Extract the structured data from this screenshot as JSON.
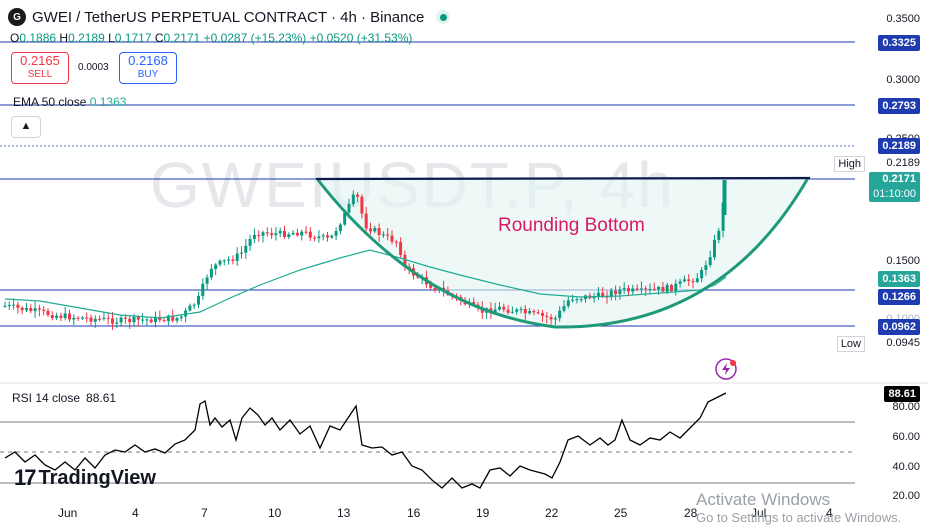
{
  "watermark": "GWEIUSDT.P, 4h",
  "header": {
    "title": "GWEI / TetherUS PERPETUAL CONTRACT · 4h · Binance",
    "ohlc": {
      "o_label": "O",
      "o": "0.1886",
      "h_label": "H",
      "h": "0.2189",
      "l_label": "L",
      "l": "0.1717",
      "c_label": "C",
      "c": "0.2171",
      "change": "+0.0287 (+15.23%)",
      "change2": "+0.0520 (+31.53%)"
    }
  },
  "trade": {
    "sell_price": "0.2165",
    "sell_label": "SELL",
    "spread": "0.0003",
    "buy_price": "0.2168",
    "buy_label": "BUY"
  },
  "indicators": {
    "ema_label": "EMA 50 close",
    "ema_value": "0.1363",
    "rsi_label": "RSI 14 close",
    "rsi_value": "88.61"
  },
  "pattern_label": "Rounding Bottom",
  "price_axis": {
    "ticks": [
      "0.3500",
      "0.3000",
      "0.2500",
      "0.1500",
      "0.1000"
    ],
    "tags": {
      "l_3325": "0.3325",
      "l_2793": "0.2793",
      "l_2189": "0.2189",
      "current": "0.2171",
      "countdown": "01:10:00",
      "ema": "0.1363",
      "l_1266": "0.1266",
      "l_0962": "0.0962"
    },
    "high_label": "High",
    "high_value": "0.2189",
    "low_label": "Low",
    "low_value": "0.0945"
  },
  "rsi_axis": {
    "ticks": [
      "80.00",
      "60.00",
      "40.00",
      "20.00"
    ],
    "value_tag": "88.61"
  },
  "time_axis": [
    "Jun",
    "4",
    "7",
    "10",
    "13",
    "16",
    "19",
    "22",
    "25",
    "28",
    "Jul",
    "4"
  ],
  "brand": "TradingView",
  "os_notice": {
    "line1": "Activate Windows",
    "line2": "Go to Settings to activate Windows."
  },
  "colors": {
    "up": "#089981",
    "down": "#f23645",
    "ema": "#22ab94",
    "pattern": "#1e9a7a",
    "level": "#1e3bb0",
    "rsi": "#000000"
  }
}
